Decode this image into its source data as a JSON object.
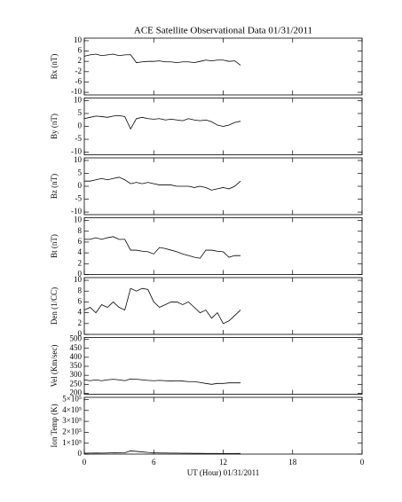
{
  "chart_data": [
    {
      "type": "line",
      "title": "ACE Satellite Observational Data   01/31/2011",
      "ylabel": "Bx (nT)",
      "x": [
        0,
        0.5,
        1,
        1.5,
        2,
        2.5,
        3,
        3.5,
        4,
        4.5,
        5,
        5.5,
        6,
        6.5,
        7,
        7.5,
        8,
        8.5,
        9,
        9.5,
        10,
        10.5,
        11,
        11.5,
        12,
        12.5,
        13,
        13.5
      ],
      "values": [
        4,
        4.5,
        4.8,
        4.2,
        4.5,
        4.8,
        4.2,
        4.5,
        4.6,
        1.5,
        1.8,
        2,
        2,
        2.2,
        1.8,
        1.8,
        1.5,
        1.8,
        1.8,
        1.5,
        2,
        2.5,
        2.2,
        2.5,
        2.5,
        2,
        2.2,
        0.5
      ],
      "xlim": [
        0,
        24
      ],
      "xticks": [
        0,
        6,
        12,
        18,
        {
          "value": 24,
          "label": "0"
        }
      ],
      "ylim": [
        -11,
        11
      ],
      "yticks": [
        10,
        6,
        2,
        -2,
        -6,
        -10
      ],
      "color": "#000000"
    },
    {
      "type": "line",
      "ylabel": "By (nT)",
      "x": [
        0,
        0.5,
        1,
        1.5,
        2,
        2.5,
        3,
        3.5,
        4,
        4.5,
        5,
        5.5,
        6,
        6.5,
        7,
        7.5,
        8,
        8.5,
        9,
        9.5,
        10,
        10.5,
        11,
        11.5,
        12,
        12.5,
        13,
        13.5
      ],
      "values": [
        3,
        3.5,
        4,
        3.8,
        3.5,
        4,
        4.2,
        3.8,
        -1,
        3,
        3.5,
        3,
        2.8,
        3,
        2.5,
        2.8,
        2.5,
        2.2,
        3,
        2.5,
        2.2,
        2.5,
        1.8,
        0.5,
        0,
        0.5,
        1.5,
        2
      ],
      "xlim": [
        0,
        24
      ],
      "xticks": [
        0,
        6,
        12,
        18,
        {
          "value": 24,
          "label": "0"
        }
      ],
      "ylim": [
        -11,
        11
      ],
      "yticks": [
        10,
        5,
        0,
        -5,
        -10
      ],
      "color": "#000000"
    },
    {
      "type": "line",
      "ylabel": "Bz (nT)",
      "x": [
        0,
        0.5,
        1,
        1.5,
        2,
        2.5,
        3,
        3.5,
        4,
        4.5,
        5,
        5.5,
        6,
        6.5,
        7,
        7.5,
        8,
        8.5,
        9,
        9.5,
        10,
        10.5,
        11,
        11.5,
        12,
        12.5,
        13,
        13.5
      ],
      "values": [
        2,
        2,
        2.5,
        3,
        2.5,
        3,
        3.5,
        2.5,
        1,
        1.5,
        1,
        1.5,
        1,
        0.5,
        0.5,
        0.5,
        0,
        0,
        0,
        -0.5,
        0,
        -0.5,
        -1.5,
        -1,
        -0.5,
        -1,
        0,
        2
      ],
      "xlim": [
        0,
        24
      ],
      "xticks": [
        0,
        6,
        12,
        18,
        {
          "value": 24,
          "label": "0"
        }
      ],
      "ylim": [
        -11,
        11
      ],
      "yticks": [
        10,
        5,
        0,
        -5,
        -10
      ],
      "color": "#000000"
    },
    {
      "type": "line",
      "ylabel": "Bt (nT)",
      "x": [
        0,
        0.5,
        1,
        1.5,
        2,
        2.5,
        3,
        3.5,
        4,
        4.5,
        5,
        5.5,
        6,
        6.5,
        7,
        7.5,
        8,
        8.5,
        9,
        9.5,
        10,
        10.5,
        11,
        11.5,
        12,
        12.5,
        13,
        13.5
      ],
      "values": [
        6.5,
        6.5,
        6.8,
        6.5,
        6.8,
        7,
        6.5,
        6.5,
        4.5,
        4.5,
        4.3,
        4.2,
        3.8,
        5,
        4.8,
        4.5,
        4.2,
        3.8,
        3.5,
        3.2,
        3,
        4.5,
        4.5,
        4.3,
        4.2,
        3.2,
        3.5,
        3.5
      ],
      "xlim": [
        0,
        24
      ],
      "xticks": [
        0,
        6,
        12,
        18,
        {
          "value": 24,
          "label": "0"
        }
      ],
      "ylim": [
        0,
        10.5
      ],
      "yticks": [
        0,
        2,
        4,
        6,
        8,
        10
      ],
      "color": "#000000"
    },
    {
      "type": "line",
      "ylabel": "Den (1/CC)",
      "x": [
        0,
        0.5,
        1,
        1.5,
        2,
        2.5,
        3,
        3.5,
        4,
        4.5,
        5,
        5.5,
        6,
        6.5,
        7,
        7.5,
        8,
        8.5,
        9,
        9.5,
        10,
        10.5,
        11,
        11.5,
        12,
        12.5,
        13,
        13.5
      ],
      "values": [
        4.5,
        5,
        4,
        5.5,
        5,
        6,
        5,
        4.5,
        8.5,
        8,
        8.5,
        8.3,
        6,
        5,
        5.5,
        6,
        6,
        5.5,
        6,
        5,
        4,
        4.5,
        3,
        4,
        2,
        2.5,
        3.5,
        4.5
      ],
      "xlim": [
        0,
        24
      ],
      "xticks": [
        0,
        6,
        12,
        18,
        {
          "value": 24,
          "label": "0"
        }
      ],
      "ylim": [
        0,
        10.5
      ],
      "yticks": [
        0,
        2,
        4,
        6,
        8,
        10
      ],
      "color": "#000000"
    },
    {
      "type": "line",
      "ylabel": "Vel (Km/sec)",
      "x": [
        0,
        0.5,
        1,
        1.5,
        2,
        2.5,
        3,
        3.5,
        4,
        4.5,
        5,
        5.5,
        6,
        6.5,
        7,
        7.5,
        8,
        8.5,
        9,
        9.5,
        10,
        10.5,
        11,
        11.5,
        12,
        12.5,
        13,
        13.5
      ],
      "values": [
        275,
        270,
        275,
        270,
        275,
        278,
        275,
        270,
        280,
        278,
        275,
        272,
        270,
        272,
        270,
        268,
        270,
        268,
        265,
        265,
        260,
        255,
        250,
        255,
        255,
        258,
        258,
        258
      ],
      "xlim": [
        0,
        24
      ],
      "xticks": [
        0,
        6,
        12,
        18,
        {
          "value": 24,
          "label": "0"
        }
      ],
      "ylim": [
        195,
        510
      ],
      "yticks": [
        200,
        250,
        300,
        350,
        400,
        450,
        500
      ],
      "color": "#000000"
    },
    {
      "type": "line",
      "ylabel": "Ion Temp (K)",
      "xlabel": "UT (Hour)  01/31/2011",
      "x": [
        0,
        0.5,
        1,
        1.5,
        2,
        2.5,
        3,
        3.5,
        4,
        4.5,
        5,
        5.5,
        6,
        6.5,
        7,
        7.5,
        8,
        8.5,
        9,
        9.5,
        10,
        10.5,
        11,
        11.5,
        12,
        12.5,
        13,
        13.5
      ],
      "values": [
        8000,
        9000,
        10000,
        9000,
        10000,
        12000,
        11000,
        12000,
        30000,
        25000,
        20000,
        15000,
        12000,
        10000,
        10000,
        9000,
        9000,
        8000,
        8000,
        7000,
        7000,
        6000,
        6000,
        6000,
        5000,
        5000,
        6000,
        6000
      ],
      "xlim": [
        0,
        24
      ],
      "xticks": [
        0,
        6,
        12,
        18,
        {
          "value": 24,
          "label": "0"
        }
      ],
      "ylim": [
        0,
        520000
      ],
      "yticks": [
        0,
        {
          "value": 100000,
          "label": "1×10⁵"
        },
        {
          "value": 200000,
          "label": "2×10⁵"
        },
        {
          "value": 300000,
          "label": "3×10⁵"
        },
        {
          "value": 400000,
          "label": "4×10⁵"
        },
        {
          "value": 500000,
          "label": "5×10⁵"
        }
      ],
      "color": "#000000"
    }
  ]
}
